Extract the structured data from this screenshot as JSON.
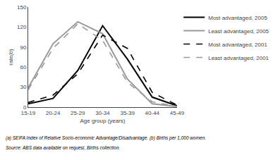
{
  "chart_data": {
    "type": "line",
    "categories": [
      "15-19",
      "20-24",
      "25-29",
      "30-34",
      "35-39",
      "40-44",
      "45-49"
    ],
    "series": [
      {
        "name": "Most advantaged, 2005",
        "color": "#000000",
        "line_style": "solid",
        "values": [
          5,
          13,
          55,
          122,
          72,
          15,
          2
        ]
      },
      {
        "name": "Least advantaged, 2005",
        "color": "#999999",
        "line_style": "solid",
        "values": [
          29,
          95,
          128,
          110,
          42,
          5,
          1
        ]
      },
      {
        "name": "Most advantaged, 2001",
        "color": "#000000",
        "line_style": "dashed",
        "values": [
          7,
          18,
          50,
          108,
          88,
          22,
          3
        ]
      },
      {
        "name": "Least advantaged, 2001",
        "color": "#999999",
        "line_style": "dashed",
        "values": [
          26,
          88,
          125,
          100,
          37,
          8,
          1
        ]
      }
    ],
    "ylabel": "rate(b)",
    "xlabel": "Age group (years)",
    "ylim": [
      0,
      150
    ],
    "yticks": [
      0,
      30,
      60,
      90,
      120,
      150
    ],
    "grid": false,
    "legend": "upper right",
    "annotations": [
      "(a) SEIFA Index of Relative Socio-economic Advantage/Disadvantage. (b) Births per 1,000 women.",
      "Source: ABS data available on request, Births collection."
    ]
  }
}
